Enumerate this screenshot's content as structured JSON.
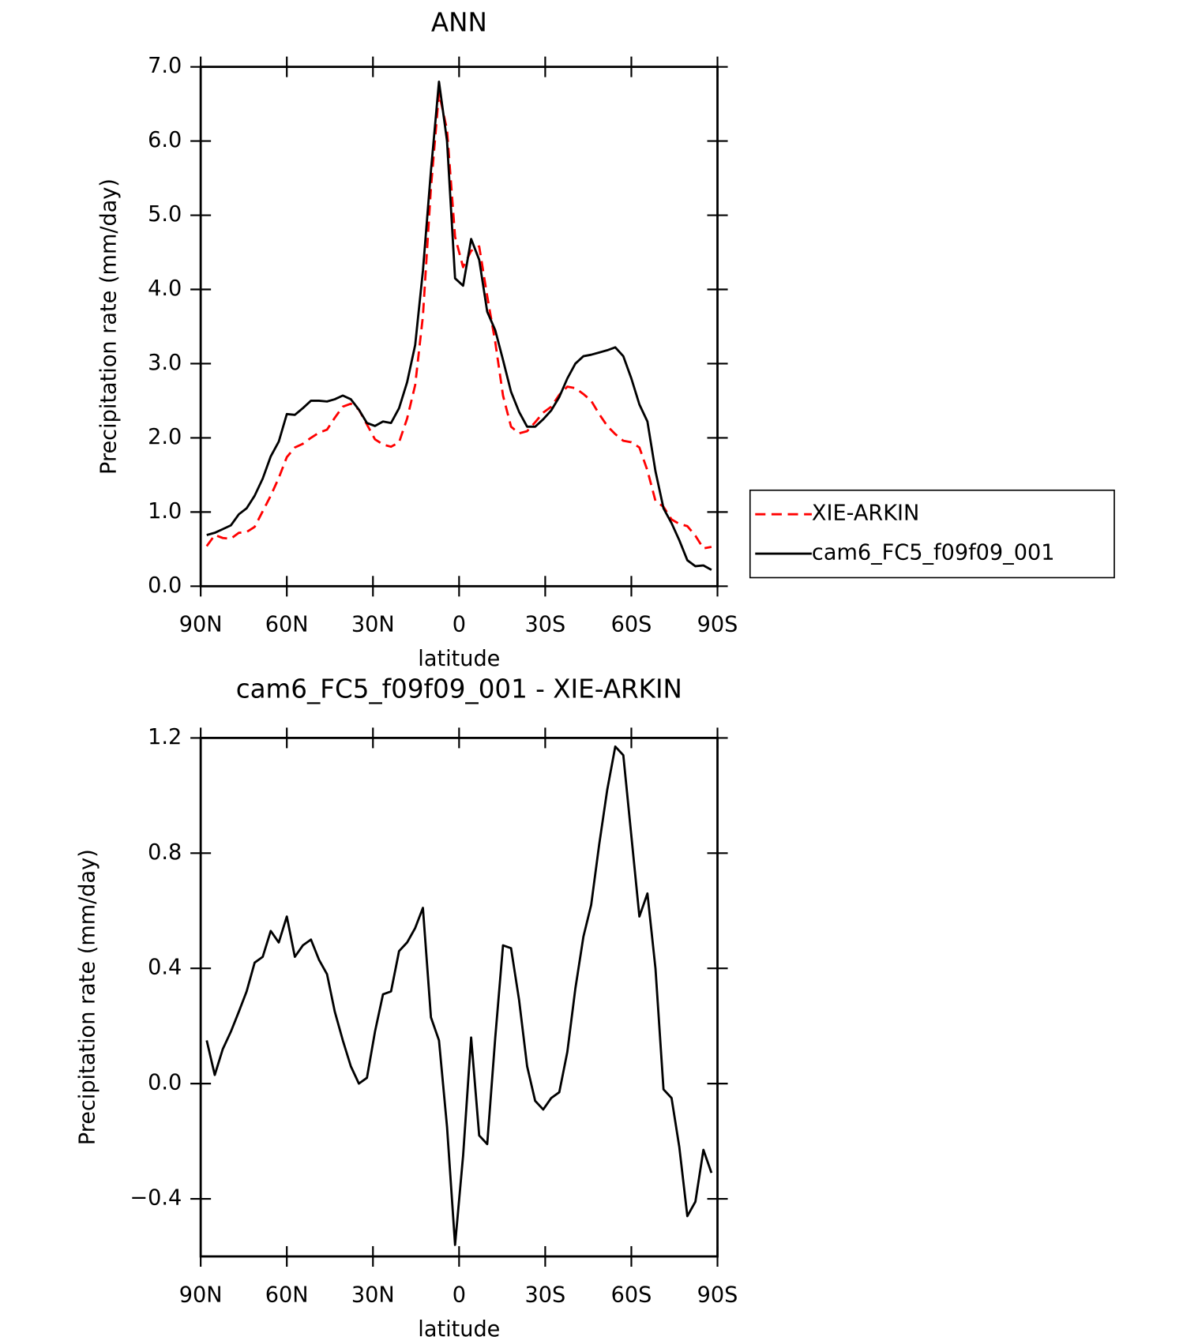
{
  "chart_data": [
    {
      "type": "line",
      "title": "ANN",
      "x_label": "latitude",
      "y_label": "Precipitation rate (mm/day)",
      "x": [
        87.9,
        85.1,
        82.3,
        79.5,
        76.7,
        74.0,
        71.2,
        68.4,
        65.6,
        62.8,
        60.0,
        57.2,
        54.4,
        51.6,
        48.8,
        46.0,
        43.3,
        40.5,
        37.7,
        34.9,
        32.1,
        29.3,
        26.5,
        23.7,
        20.9,
        18.1,
        15.3,
        12.6,
        9.8,
        7.0,
        4.2,
        1.4,
        -1.4,
        -4.2,
        -7.0,
        -9.8,
        -12.6,
        -15.3,
        -18.1,
        -20.9,
        -23.7,
        -26.5,
        -29.3,
        -32.1,
        -34.9,
        -37.7,
        -40.5,
        -43.3,
        -46.0,
        -48.8,
        -51.6,
        -54.4,
        -57.2,
        -60.0,
        -62.8,
        -65.6,
        -68.4,
        -71.2,
        -74.0,
        -76.7,
        -79.5,
        -82.3,
        -85.1,
        -87.9
      ],
      "series": [
        {
          "name": "XIE-ARKIN",
          "color": "#ff0000",
          "line_style": "dashed",
          "values": [
            0.54,
            0.69,
            0.65,
            0.64,
            0.72,
            0.73,
            0.8,
            1.01,
            1.22,
            1.46,
            1.74,
            1.87,
            1.92,
            2.0,
            2.07,
            2.11,
            2.27,
            2.42,
            2.46,
            2.38,
            2.18,
            1.98,
            1.91,
            1.88,
            1.94,
            2.26,
            2.71,
            3.64,
            5.37,
            6.65,
            6.15,
            4.71,
            4.3,
            4.52,
            4.58,
            3.91,
            3.29,
            2.57,
            2.15,
            2.06,
            2.09,
            2.21,
            2.34,
            2.42,
            2.58,
            2.69,
            2.67,
            2.59,
            2.5,
            2.32,
            2.16,
            2.05,
            1.96,
            1.94,
            1.87,
            1.56,
            1.15,
            1.07,
            0.9,
            0.84,
            0.81,
            0.68,
            0.51,
            0.53
          ]
        },
        {
          "name": "cam6_FC5_f09f09_001",
          "color": "#000000",
          "line_style": "solid",
          "values": [
            0.69,
            0.72,
            0.77,
            0.82,
            0.97,
            1.05,
            1.22,
            1.45,
            1.75,
            1.95,
            2.32,
            2.31,
            2.4,
            2.5,
            2.5,
            2.49,
            2.52,
            2.57,
            2.52,
            2.38,
            2.2,
            2.16,
            2.22,
            2.2,
            2.4,
            2.75,
            3.25,
            4.25,
            5.6,
            6.8,
            6.0,
            4.15,
            4.05,
            4.68,
            4.4,
            3.7,
            3.45,
            3.05,
            2.62,
            2.35,
            2.15,
            2.15,
            2.25,
            2.37,
            2.55,
            2.8,
            3.0,
            3.1,
            3.12,
            3.15,
            3.18,
            3.22,
            3.1,
            2.8,
            2.45,
            2.22,
            1.55,
            1.05,
            0.85,
            0.62,
            0.35,
            0.27,
            0.28,
            0.22
          ]
        }
      ],
      "xlim": [
        90,
        -90
      ],
      "xticks": [
        {
          "value": 90,
          "label": "90N"
        },
        {
          "value": 60,
          "label": "60N"
        },
        {
          "value": 30,
          "label": "30N"
        },
        0,
        {
          "value": -30,
          "label": "30S"
        },
        {
          "value": -60,
          "label": "60S"
        },
        {
          "value": -90,
          "label": "90S"
        }
      ],
      "ylim": [
        0,
        7
      ],
      "yticks": [
        {
          "value": 0,
          "label": "0.0"
        },
        {
          "value": 1,
          "label": "1.0"
        },
        {
          "value": 2,
          "label": "2.0"
        },
        {
          "value": 3,
          "label": "3.0"
        },
        {
          "value": 4,
          "label": "4.0"
        },
        {
          "value": 5,
          "label": "5.0"
        },
        {
          "value": 6,
          "label": "6.0"
        },
        {
          "value": 7,
          "label": "7.0"
        }
      ],
      "legend": "right"
    },
    {
      "type": "line",
      "title": "cam6_FC5_f09f09_001 - XIE-ARKIN",
      "x_label": "latitude",
      "y_label": "Precipitation rate (mm/day)",
      "x": [
        87.9,
        85.1,
        82.3,
        79.5,
        76.7,
        74.0,
        71.2,
        68.4,
        65.6,
        62.8,
        60.0,
        57.2,
        54.4,
        51.6,
        48.8,
        46.0,
        43.3,
        40.5,
        37.7,
        34.9,
        32.1,
        29.3,
        26.5,
        23.7,
        20.9,
        18.1,
        15.3,
        12.6,
        9.8,
        7.0,
        4.2,
        1.4,
        -1.4,
        -4.2,
        -7.0,
        -9.8,
        -12.6,
        -15.3,
        -18.1,
        -20.9,
        -23.7,
        -26.5,
        -29.3,
        -32.1,
        -34.9,
        -37.7,
        -40.5,
        -43.3,
        -46.0,
        -48.8,
        -51.6,
        -54.4,
        -57.2,
        -60.0,
        -62.8,
        -65.6,
        -68.4,
        -71.2,
        -74.0,
        -76.7,
        -79.5,
        -82.3,
        -85.1,
        -87.9
      ],
      "series": [
        {
          "color": "#000000",
          "line_style": "solid",
          "values": [
            0.15,
            0.03,
            0.12,
            0.18,
            0.25,
            0.32,
            0.42,
            0.44,
            0.53,
            0.49,
            0.58,
            0.44,
            0.48,
            0.5,
            0.43,
            0.38,
            0.25,
            0.15,
            0.06,
            0.0,
            0.02,
            0.18,
            0.31,
            0.32,
            0.46,
            0.49,
            0.54,
            0.61,
            0.23,
            0.15,
            -0.15,
            -0.56,
            -0.25,
            0.16,
            -0.18,
            -0.21,
            0.16,
            0.48,
            0.47,
            0.29,
            0.06,
            -0.06,
            -0.09,
            -0.05,
            -0.03,
            0.11,
            0.33,
            0.51,
            0.62,
            0.83,
            1.02,
            1.17,
            1.14,
            0.86,
            0.58,
            0.66,
            0.4,
            -0.02,
            -0.05,
            -0.22,
            -0.46,
            -0.41,
            -0.23,
            -0.31
          ]
        }
      ],
      "xlim": [
        90,
        -90
      ],
      "xticks": [
        {
          "value": 90,
          "label": "90N"
        },
        {
          "value": 60,
          "label": "60N"
        },
        {
          "value": 30,
          "label": "30N"
        },
        0,
        {
          "value": -30,
          "label": "30S"
        },
        {
          "value": -60,
          "label": "60S"
        },
        {
          "value": -90,
          "label": "90S"
        }
      ],
      "ylim": [
        -0.6,
        1.2
      ],
      "yticks": [
        {
          "value": -0.4,
          "label": "−0.4"
        },
        {
          "value": 0,
          "label": "0.0"
        },
        0.4,
        0.8,
        1.2
      ]
    }
  ]
}
